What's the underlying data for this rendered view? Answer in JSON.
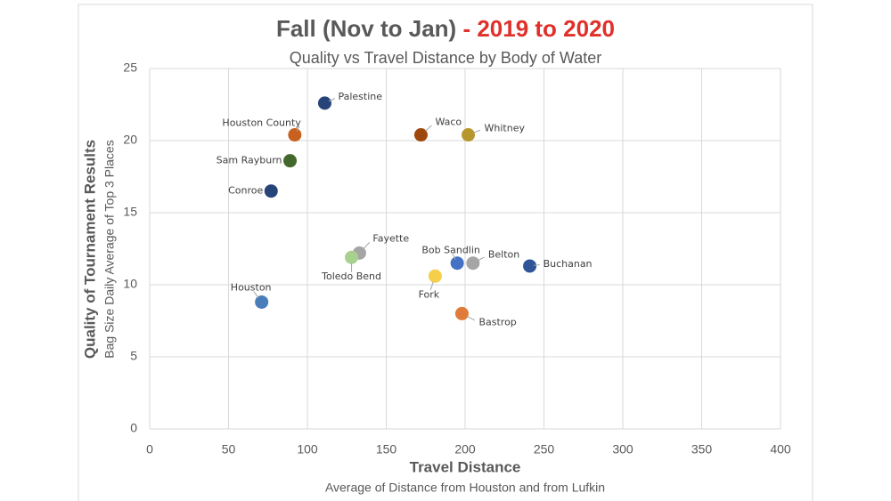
{
  "chart_data": {
    "type": "scatter",
    "title": "Fall (Nov to Jan)",
    "title_highlight": "- 2019 to 2020",
    "subtitle": "Quality vs Travel Distance by Body of Water",
    "x_label": "Travel Distance",
    "x_sublabel": "Average of Distance from Houston and from Lufkin",
    "y_label": "Quality of Tournament Results",
    "y_sublabel": "Bag Size Daily Average of Top 3 Places",
    "xlim": [
      0,
      400
    ],
    "xticks": [
      0,
      50,
      100,
      150,
      200,
      250,
      300,
      350,
      400
    ],
    "ylim": [
      0,
      25
    ],
    "yticks": [
      0,
      5,
      10,
      15,
      20,
      25
    ],
    "grid": true,
    "series": [
      {
        "name": "Palestine",
        "color": "#264478",
        "x": [
          111
        ],
        "values": [
          22.6
        ]
      },
      {
        "name": "Houston County",
        "color": "#c8601f",
        "x": [
          92
        ],
        "values": [
          20.4
        ]
      },
      {
        "name": "Waco",
        "color": "#9e480e",
        "x": [
          172
        ],
        "values": [
          20.4
        ]
      },
      {
        "name": "Whitney",
        "color": "#b8962e",
        "x": [
          202
        ],
        "values": [
          20.4
        ]
      },
      {
        "name": "Sam Rayburn",
        "color": "#43682b",
        "x": [
          89
        ],
        "values": [
          18.6
        ]
      },
      {
        "name": "Conroe",
        "color": "#264478",
        "x": [
          77
        ],
        "values": [
          16.5
        ]
      },
      {
        "name": "Fayette",
        "color": "#a5a5a5",
        "x": [
          133
        ],
        "values": [
          12.2
        ]
      },
      {
        "name": "Toledo Bend",
        "color": "#a9d18e",
        "x": [
          128
        ],
        "values": [
          11.9
        ]
      },
      {
        "name": "Bob Sandlin",
        "color": "#4472c4",
        "x": [
          195
        ],
        "values": [
          11.5
        ]
      },
      {
        "name": "Belton",
        "color": "#a5a5a5",
        "x": [
          205
        ],
        "values": [
          11.5
        ]
      },
      {
        "name": "Buchanan",
        "color": "#2f5597",
        "x": [
          241
        ],
        "values": [
          11.3
        ]
      },
      {
        "name": "Fork",
        "color": "#f5cf4a",
        "x": [
          181
        ],
        "values": [
          10.6
        ]
      },
      {
        "name": "Houston",
        "color": "#4a7ebb",
        "x": [
          71
        ],
        "values": [
          8.8
        ]
      },
      {
        "name": "Bastrop",
        "color": "#e07b39",
        "x": [
          198
        ],
        "values": [
          8.0
        ]
      }
    ]
  }
}
